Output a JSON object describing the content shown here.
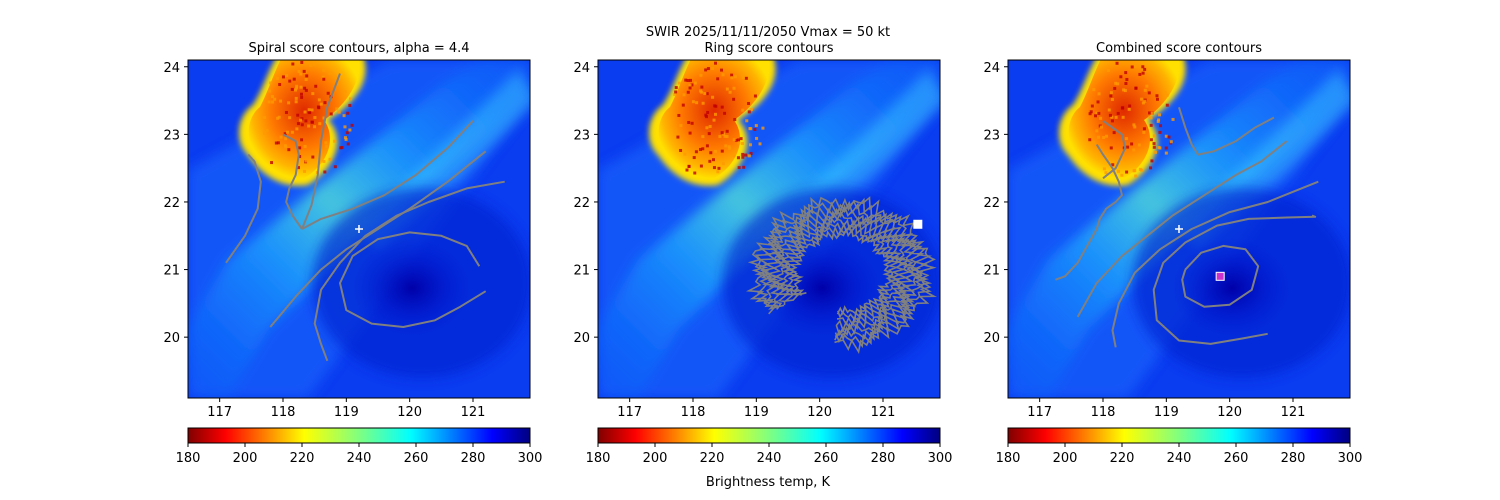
{
  "figure": {
    "suptitle_line1": "SWIR  2025/11/11/2050    Vmax = 50 kt"
  },
  "colorbar": {
    "ticks": [
      180,
      200,
      220,
      240,
      260,
      280,
      300
    ],
    "range": [
      180,
      300
    ],
    "colormap": "jet_r",
    "label": "Brightness temp, K"
  },
  "chart_data": [
    {
      "type": "heatmap",
      "title": "Spiral score contours, alpha =  4.4",
      "xlim": [
        116.5,
        121.9
      ],
      "ylim": [
        19.1,
        24.1
      ],
      "xticks": [
        117,
        118,
        119,
        120,
        121
      ],
      "yticks": [
        20,
        21,
        22,
        23,
        24
      ],
      "background": "satellite brightness temperature (SWIR)",
      "markers": [
        {
          "symbol": "+",
          "lon": 119.2,
          "lat": 21.6,
          "color": "#ffffff"
        }
      ],
      "contours": [
        [
          [
            117.1,
            21.1
          ],
          [
            117.4,
            21.5
          ],
          [
            117.6,
            21.9
          ],
          [
            117.65,
            22.3
          ],
          [
            117.55,
            22.6
          ],
          [
            117.45,
            22.7
          ]
        ],
        [
          [
            118.0,
            23.0
          ],
          [
            118.2,
            22.9
          ],
          [
            118.25,
            22.7
          ],
          [
            118.2,
            22.4
          ],
          [
            118.1,
            22.2
          ],
          [
            118.05,
            22.0
          ],
          [
            118.15,
            21.8
          ],
          [
            118.3,
            21.6
          ]
        ],
        [
          [
            118.3,
            21.6
          ],
          [
            118.6,
            21.75
          ],
          [
            119.1,
            21.9
          ],
          [
            119.6,
            22.1
          ],
          [
            120.1,
            22.4
          ],
          [
            120.6,
            22.8
          ],
          [
            121.0,
            23.2
          ]
        ],
        [
          [
            118.3,
            21.6
          ],
          [
            118.45,
            21.95
          ],
          [
            118.55,
            22.4
          ],
          [
            118.6,
            22.9
          ],
          [
            118.7,
            23.4
          ],
          [
            118.9,
            23.9
          ]
        ],
        [
          [
            117.8,
            20.15
          ],
          [
            118.2,
            20.6
          ],
          [
            118.6,
            21.0
          ],
          [
            119.0,
            21.3
          ],
          [
            119.5,
            21.6
          ],
          [
            120.0,
            21.9
          ],
          [
            120.6,
            22.3
          ],
          [
            121.2,
            22.75
          ]
        ],
        [
          [
            118.7,
            19.65
          ],
          [
            118.6,
            19.9
          ],
          [
            118.5,
            20.2
          ],
          [
            118.6,
            20.7
          ],
          [
            118.9,
            21.1
          ],
          [
            119.3,
            21.5
          ],
          [
            119.8,
            21.8
          ],
          [
            120.3,
            22.0
          ],
          [
            120.9,
            22.2
          ],
          [
            121.5,
            22.3
          ]
        ],
        [
          [
            121.2,
            20.68
          ],
          [
            120.8,
            20.45
          ],
          [
            120.4,
            20.25
          ],
          [
            119.9,
            20.15
          ],
          [
            119.4,
            20.2
          ],
          [
            119.0,
            20.4
          ],
          [
            118.9,
            20.8
          ],
          [
            119.1,
            21.2
          ],
          [
            119.5,
            21.45
          ],
          [
            120.0,
            21.55
          ],
          [
            120.5,
            21.5
          ],
          [
            120.9,
            21.35
          ],
          [
            121.1,
            21.05
          ]
        ]
      ]
    },
    {
      "type": "heatmap",
      "title": "Ring score contours",
      "xlim": [
        116.5,
        121.9
      ],
      "ylim": [
        19.1,
        24.1
      ],
      "xticks": [
        117,
        118,
        119,
        120,
        121
      ],
      "yticks": [
        20,
        21,
        22,
        23,
        24
      ],
      "background": "satellite brightness temperature (SWIR)",
      "markers": [
        {
          "symbol": "square",
          "lon": 121.55,
          "lat": 21.67,
          "color": "#ffffff"
        }
      ],
      "ring_contours": {
        "center": [
          120.35,
          20.95
        ],
        "radius_lon": 1.35,
        "radius_lat": 1.05,
        "arc_from_deg": -95,
        "arc_to_deg": 215,
        "strands": 9
      }
    },
    {
      "type": "heatmap",
      "title": "Combined score contours",
      "xlim": [
        116.5,
        121.9
      ],
      "ylim": [
        19.1,
        24.1
      ],
      "xticks": [
        117,
        118,
        119,
        120,
        121
      ],
      "yticks": [
        20,
        21,
        22,
        23,
        24
      ],
      "background": "satellite brightness temperature (SWIR)",
      "markers": [
        {
          "symbol": "+",
          "lon": 119.2,
          "lat": 21.6,
          "color": "#ffffff"
        },
        {
          "symbol": "square",
          "lon": 119.85,
          "lat": 20.9,
          "color": "#cc33cc"
        }
      ],
      "contours": [
        [
          [
            117.9,
            22.85
          ],
          [
            118.0,
            22.7
          ],
          [
            118.15,
            22.5
          ],
          [
            118.25,
            22.3
          ],
          [
            118.3,
            22.1
          ],
          [
            118.2,
            22.0
          ],
          [
            118.05,
            21.9
          ],
          [
            117.95,
            21.75
          ],
          [
            117.9,
            21.6
          ],
          [
            117.75,
            21.35
          ],
          [
            117.6,
            21.1
          ],
          [
            117.4,
            20.9
          ],
          [
            117.25,
            20.85
          ]
        ],
        [
          [
            118.0,
            22.35
          ],
          [
            118.2,
            22.5
          ],
          [
            118.35,
            22.8
          ],
          [
            118.3,
            23.0
          ],
          [
            118.0,
            23.2
          ]
        ],
        [
          [
            119.2,
            23.4
          ],
          [
            119.3,
            23.1
          ],
          [
            119.4,
            22.85
          ],
          [
            119.5,
            22.7
          ],
          [
            119.75,
            22.75
          ],
          [
            120.1,
            22.9
          ],
          [
            120.4,
            23.1
          ],
          [
            120.7,
            23.25
          ]
        ],
        [
          [
            117.6,
            20.3
          ],
          [
            117.9,
            20.8
          ],
          [
            118.3,
            21.2
          ],
          [
            118.7,
            21.5
          ],
          [
            119.1,
            21.8
          ],
          [
            119.6,
            22.1
          ],
          [
            120.1,
            22.4
          ],
          [
            120.5,
            22.6
          ],
          [
            120.9,
            22.9
          ]
        ],
        [
          [
            118.2,
            19.85
          ],
          [
            118.15,
            20.1
          ],
          [
            118.25,
            20.5
          ],
          [
            118.5,
            20.95
          ],
          [
            118.9,
            21.3
          ],
          [
            119.4,
            21.6
          ],
          [
            120.0,
            21.85
          ],
          [
            120.6,
            22.0
          ],
          [
            121.0,
            22.15
          ],
          [
            121.4,
            22.3
          ]
        ],
        [
          [
            120.6,
            20.05
          ],
          [
            120.2,
            19.98
          ],
          [
            119.7,
            19.9
          ],
          [
            119.2,
            19.95
          ],
          [
            118.85,
            20.25
          ],
          [
            118.8,
            20.7
          ],
          [
            118.95,
            21.1
          ],
          [
            119.3,
            21.4
          ],
          [
            119.8,
            21.65
          ],
          [
            120.3,
            21.75
          ],
          [
            120.9,
            21.77
          ],
          [
            121.35,
            21.78
          ],
          [
            121.3,
            21.8
          ]
        ],
        [
          [
            119.3,
            21.0
          ],
          [
            119.55,
            21.25
          ],
          [
            119.9,
            21.35
          ],
          [
            120.25,
            21.3
          ],
          [
            120.45,
            21.05
          ],
          [
            120.35,
            20.7
          ],
          [
            120.0,
            20.48
          ],
          [
            119.6,
            20.45
          ],
          [
            119.3,
            20.6
          ],
          [
            119.25,
            20.85
          ],
          [
            119.3,
            21.0
          ]
        ]
      ]
    }
  ]
}
